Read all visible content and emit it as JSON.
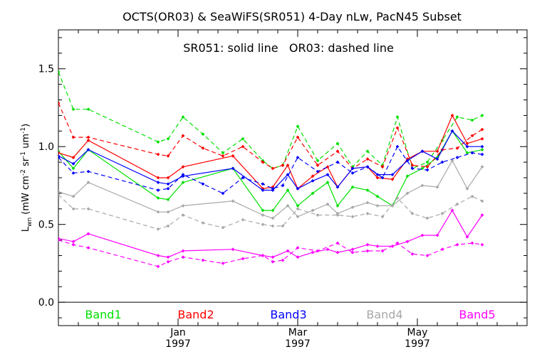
{
  "chart_data": {
    "type": "line",
    "title": "OCTS(OR03) & SeaWiFS(SR051) 4-Day nLw, PacN45 Subset",
    "annotation": "SR051: solid line   OR03: dashed line",
    "ylabel": "Lwn (mW cm-2 sr-1 um-1)",
    "ylabel_parts": {
      "main": "L",
      "sub": "wn",
      "rest": " (mW cm",
      "exp1": "-2",
      "mid1": " sr",
      "exp2": "-1",
      "mid2": " um",
      "exp3": "-1",
      "close": ")"
    },
    "ylim": [
      -0.15,
      1.75
    ],
    "yticks": [
      {
        "value": 0.0,
        "label": "0.0"
      },
      {
        "value": 0.5,
        "label": "0.5"
      },
      {
        "value": 1.0,
        "label": "1.0"
      },
      {
        "value": 1.5,
        "label": "1.5"
      }
    ],
    "xlim": [
      0,
      94
    ],
    "xticks": [
      {
        "x": 24,
        "label": "Jan",
        "year": "1997"
      },
      {
        "x": 48,
        "label": "Mar",
        "year": "1997"
      },
      {
        "x": 72,
        "label": "May",
        "year": "1997"
      }
    ],
    "zero_line": 0.0,
    "grid": false,
    "legend_position": "bottom-inside",
    "series": [
      {
        "name": "Band1",
        "sensor": "SR051",
        "style": "solid",
        "color": "#00e000",
        "points": [
          [
            0,
            0.97
          ],
          [
            3,
            0.86
          ],
          [
            6,
            0.98
          ],
          [
            20,
            0.67
          ],
          [
            22,
            0.66
          ],
          [
            25,
            0.77
          ],
          [
            35,
            0.86
          ],
          [
            41,
            0.59
          ],
          [
            43,
            0.59
          ],
          [
            46,
            0.72
          ],
          [
            48,
            0.62
          ],
          [
            51,
            0.7
          ],
          [
            54,
            0.77
          ],
          [
            56,
            0.62
          ],
          [
            59,
            0.74
          ],
          [
            62,
            0.72
          ],
          [
            64,
            0.68
          ],
          [
            67,
            0.62
          ],
          [
            70,
            0.81
          ],
          [
            73,
            0.86
          ],
          [
            76,
            0.93
          ],
          [
            79,
            1.1
          ],
          [
            82,
            0.96
          ],
          [
            85,
            0.98
          ]
        ]
      },
      {
        "name": "Band1",
        "sensor": "OR03",
        "style": "dashed",
        "color": "#00e000",
        "points": [
          [
            0,
            1.48
          ],
          [
            3,
            1.24
          ],
          [
            6,
            1.24
          ],
          [
            20,
            1.03
          ],
          [
            22,
            1.05
          ],
          [
            25,
            1.19
          ],
          [
            29,
            1.08
          ],
          [
            33,
            0.96
          ],
          [
            37,
            1.05
          ],
          [
            41,
            0.91
          ],
          [
            43,
            0.86
          ],
          [
            45,
            0.88
          ],
          [
            48,
            1.13
          ],
          [
            52,
            0.91
          ],
          [
            56,
            1.02
          ],
          [
            59,
            0.87
          ],
          [
            62,
            0.97
          ],
          [
            65,
            0.88
          ],
          [
            68,
            1.19
          ],
          [
            71,
            0.86
          ],
          [
            74,
            0.9
          ],
          [
            77,
            1.04
          ],
          [
            80,
            1.19
          ],
          [
            83,
            1.17
          ],
          [
            85,
            1.2
          ]
        ]
      },
      {
        "name": "Band2",
        "sensor": "SR051",
        "style": "solid",
        "color": "#ff0000",
        "points": [
          [
            0,
            0.96
          ],
          [
            3,
            0.93
          ],
          [
            6,
            1.04
          ],
          [
            20,
            0.8
          ],
          [
            22,
            0.8
          ],
          [
            25,
            0.87
          ],
          [
            35,
            0.94
          ],
          [
            41,
            0.73
          ],
          [
            43,
            0.74
          ],
          [
            46,
            0.88
          ],
          [
            48,
            0.73
          ],
          [
            51,
            0.81
          ],
          [
            54,
            0.87
          ],
          [
            56,
            0.74
          ],
          [
            59,
            0.86
          ],
          [
            62,
            0.87
          ],
          [
            64,
            0.8
          ],
          [
            67,
            0.79
          ],
          [
            70,
            0.92
          ],
          [
            73,
            0.97
          ],
          [
            76,
            0.97
          ],
          [
            79,
            1.2
          ],
          [
            82,
            1.02
          ],
          [
            85,
            1.05
          ]
        ]
      },
      {
        "name": "Band2",
        "sensor": "OR03",
        "style": "dashed",
        "color": "#ff0000",
        "points": [
          [
            0,
            1.28
          ],
          [
            3,
            1.06
          ],
          [
            6,
            1.06
          ],
          [
            20,
            0.95
          ],
          [
            22,
            0.94
          ],
          [
            25,
            1.07
          ],
          [
            29,
            0.99
          ],
          [
            33,
            0.94
          ],
          [
            37,
            1.0
          ],
          [
            41,
            0.9
          ],
          [
            43,
            0.86
          ],
          [
            45,
            0.88
          ],
          [
            48,
            1.06
          ],
          [
            52,
            0.88
          ],
          [
            56,
            0.97
          ],
          [
            59,
            0.86
          ],
          [
            62,
            0.92
          ],
          [
            65,
            0.87
          ],
          [
            68,
            1.12
          ],
          [
            71,
            0.88
          ],
          [
            74,
            0.87
          ],
          [
            77,
            0.98
          ],
          [
            80,
            0.99
          ],
          [
            83,
            1.07
          ],
          [
            85,
            1.11
          ]
        ]
      },
      {
        "name": "Band3",
        "sensor": "SR051",
        "style": "solid",
        "color": "#0000ff",
        "points": [
          [
            0,
            0.94
          ],
          [
            3,
            0.89
          ],
          [
            6,
            0.98
          ],
          [
            20,
            0.77
          ],
          [
            22,
            0.76
          ],
          [
            25,
            0.81
          ],
          [
            35,
            0.86
          ],
          [
            41,
            0.72
          ],
          [
            43,
            0.72
          ],
          [
            46,
            0.82
          ],
          [
            48,
            0.73
          ],
          [
            51,
            0.78
          ],
          [
            54,
            0.82
          ],
          [
            56,
            0.74
          ],
          [
            59,
            0.86
          ],
          [
            62,
            0.87
          ],
          [
            64,
            0.82
          ],
          [
            67,
            0.82
          ],
          [
            70,
            0.91
          ],
          [
            73,
            0.97
          ],
          [
            76,
            0.92
          ],
          [
            79,
            1.1
          ],
          [
            82,
            1.0
          ],
          [
            85,
            1.0
          ]
        ]
      },
      {
        "name": "Band3",
        "sensor": "OR03",
        "style": "dashed",
        "color": "#0000ff",
        "points": [
          [
            0,
            0.93
          ],
          [
            3,
            0.83
          ],
          [
            6,
            0.84
          ],
          [
            20,
            0.72
          ],
          [
            22,
            0.73
          ],
          [
            25,
            0.82
          ],
          [
            29,
            0.76
          ],
          [
            33,
            0.7
          ],
          [
            37,
            0.8
          ],
          [
            41,
            0.76
          ],
          [
            43,
            0.73
          ],
          [
            45,
            0.75
          ],
          [
            48,
            0.93
          ],
          [
            52,
            0.84
          ],
          [
            56,
            0.9
          ],
          [
            59,
            0.83
          ],
          [
            62,
            0.87
          ],
          [
            65,
            0.8
          ],
          [
            68,
            1.0
          ],
          [
            71,
            0.86
          ],
          [
            74,
            0.85
          ],
          [
            77,
            0.9
          ],
          [
            80,
            0.93
          ],
          [
            83,
            0.96
          ],
          [
            85,
            0.95
          ]
        ]
      },
      {
        "name": "Band4",
        "sensor": "SR051",
        "style": "solid",
        "color": "#a8a8a8",
        "points": [
          [
            0,
            0.71
          ],
          [
            3,
            0.68
          ],
          [
            6,
            0.77
          ],
          [
            20,
            0.58
          ],
          [
            22,
            0.58
          ],
          [
            25,
            0.62
          ],
          [
            35,
            0.65
          ],
          [
            41,
            0.56
          ],
          [
            43,
            0.54
          ],
          [
            46,
            0.62
          ],
          [
            48,
            0.55
          ],
          [
            51,
            0.59
          ],
          [
            54,
            0.63
          ],
          [
            56,
            0.57
          ],
          [
            59,
            0.61
          ],
          [
            62,
            0.64
          ],
          [
            64,
            0.62
          ],
          [
            67,
            0.62
          ],
          [
            70,
            0.7
          ],
          [
            73,
            0.75
          ],
          [
            76,
            0.74
          ],
          [
            79,
            0.91
          ],
          [
            82,
            0.73
          ],
          [
            85,
            0.87
          ]
        ]
      },
      {
        "name": "Band4",
        "sensor": "OR03",
        "style": "dashed",
        "color": "#a8a8a8",
        "points": [
          [
            0,
            0.69
          ],
          [
            3,
            0.6
          ],
          [
            6,
            0.6
          ],
          [
            20,
            0.47
          ],
          [
            22,
            0.49
          ],
          [
            25,
            0.56
          ],
          [
            29,
            0.51
          ],
          [
            33,
            0.48
          ],
          [
            37,
            0.53
          ],
          [
            41,
            0.5
          ],
          [
            43,
            0.49
          ],
          [
            45,
            0.49
          ],
          [
            48,
            0.6
          ],
          [
            52,
            0.56
          ],
          [
            56,
            0.56
          ],
          [
            59,
            0.55
          ],
          [
            62,
            0.57
          ],
          [
            65,
            0.55
          ],
          [
            68,
            0.67
          ],
          [
            71,
            0.57
          ],
          [
            74,
            0.54
          ],
          [
            77,
            0.57
          ],
          [
            80,
            0.63
          ],
          [
            83,
            0.68
          ],
          [
            85,
            0.65
          ]
        ]
      },
      {
        "name": "Band5",
        "sensor": "SR051",
        "style": "solid",
        "color": "#ff00ff",
        "points": [
          [
            0,
            0.41
          ],
          [
            3,
            0.39
          ],
          [
            6,
            0.44
          ],
          [
            20,
            0.3
          ],
          [
            22,
            0.29
          ],
          [
            25,
            0.33
          ],
          [
            35,
            0.34
          ],
          [
            41,
            0.3
          ],
          [
            43,
            0.29
          ],
          [
            46,
            0.33
          ],
          [
            48,
            0.29
          ],
          [
            51,
            0.32
          ],
          [
            54,
            0.34
          ],
          [
            56,
            0.32
          ],
          [
            59,
            0.34
          ],
          [
            62,
            0.37
          ],
          [
            64,
            0.36
          ],
          [
            67,
            0.36
          ],
          [
            70,
            0.39
          ],
          [
            73,
            0.43
          ],
          [
            76,
            0.43
          ],
          [
            79,
            0.59
          ],
          [
            82,
            0.42
          ],
          [
            85,
            0.56
          ]
        ]
      },
      {
        "name": "Band5",
        "sensor": "OR03",
        "style": "dashed",
        "color": "#ff00ff",
        "points": [
          [
            0,
            0.4
          ],
          [
            3,
            0.37
          ],
          [
            6,
            0.35
          ],
          [
            20,
            0.23
          ],
          [
            22,
            0.26
          ],
          [
            25,
            0.29
          ],
          [
            29,
            0.27
          ],
          [
            33,
            0.25
          ],
          [
            37,
            0.28
          ],
          [
            41,
            0.3
          ],
          [
            43,
            0.26
          ],
          [
            45,
            0.27
          ],
          [
            48,
            0.35
          ],
          [
            52,
            0.33
          ],
          [
            56,
            0.38
          ],
          [
            59,
            0.32
          ],
          [
            62,
            0.33
          ],
          [
            65,
            0.33
          ],
          [
            68,
            0.38
          ],
          [
            71,
            0.31
          ],
          [
            74,
            0.3
          ],
          [
            77,
            0.34
          ],
          [
            80,
            0.37
          ],
          [
            83,
            0.38
          ],
          [
            85,
            0.37
          ]
        ]
      }
    ],
    "legend": [
      {
        "label": "Band1",
        "color": "#00e000"
      },
      {
        "label": "Band2",
        "color": "#ff0000"
      },
      {
        "label": "Band3",
        "color": "#0000ff"
      },
      {
        "label": "Band4",
        "color": "#a8a8a8"
      },
      {
        "label": "Band5",
        "color": "#ff00ff"
      }
    ]
  }
}
